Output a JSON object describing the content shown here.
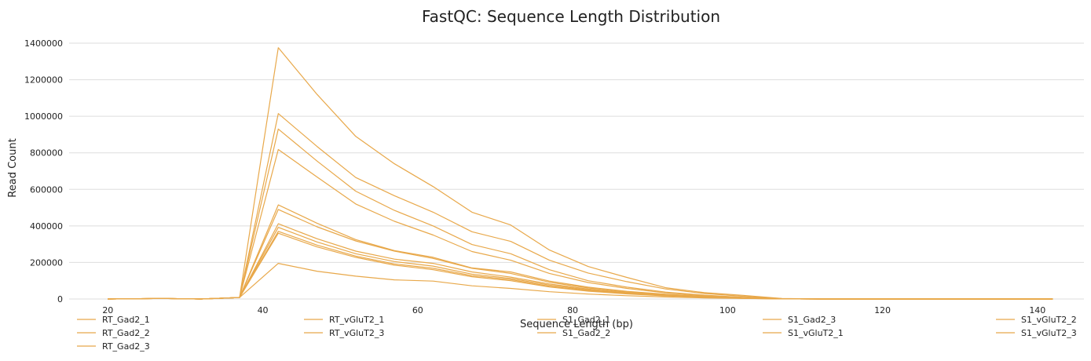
{
  "chart_data": {
    "type": "line",
    "title": "FastQC: Sequence Length Distribution",
    "xlabel": "Sequence Length (bp)",
    "ylabel": "Read Count",
    "xlim": [
      15,
      146
    ],
    "ylim": [
      0,
      1400000
    ],
    "xticks": [
      "20",
      "40",
      "60",
      "80",
      "100",
      "120",
      "140"
    ],
    "yticks": [
      "0",
      "200000",
      "400000",
      "600000",
      "800000",
      "1000000",
      "1200000",
      "1400000"
    ],
    "grid": true,
    "line_color": "#e8a84a",
    "legend_position": "bottom",
    "x": [
      20,
      27,
      32,
      37,
      42,
      47,
      52,
      57,
      62,
      67,
      72,
      77,
      82,
      87,
      92,
      97,
      102,
      107,
      112,
      117,
      122,
      127,
      132,
      137,
      142
    ],
    "series": [
      {
        "name": "RT_Gad2_1",
        "values": [
          0,
          3000,
          0,
          8000,
          1375000,
          1120000,
          890000,
          740000,
          615000,
          475000,
          405000,
          268000,
          178000,
          118000,
          62000,
          35000,
          20000,
          3000,
          0,
          0,
          0,
          0,
          0,
          0,
          0
        ]
      },
      {
        "name": "RT_Gad2_2",
        "values": [
          0,
          3000,
          0,
          8000,
          1015000,
          835000,
          665000,
          565000,
          475000,
          368000,
          315000,
          212000,
          142000,
          95000,
          55000,
          30000,
          15000,
          2000,
          0,
          0,
          0,
          0,
          0,
          0,
          0
        ]
      },
      {
        "name": "RT_Gad2_3",
        "values": [
          0,
          3000,
          0,
          8000,
          930000,
          755000,
          590000,
          485000,
          400000,
          298000,
          248000,
          160000,
          100000,
          65000,
          38000,
          21000,
          9000,
          1000,
          0,
          0,
          0,
          0,
          0,
          0,
          0
        ]
      },
      {
        "name": "RT_vGluT2_1",
        "values": [
          0,
          3000,
          0,
          8000,
          818000,
          668000,
          520000,
          425000,
          350000,
          260000,
          212000,
          140000,
          90000,
          58000,
          34000,
          19000,
          8000,
          1000,
          0,
          0,
          0,
          0,
          0,
          0,
          0
        ]
      },
      {
        "name": "RT_vGluT2_3",
        "values": [
          0,
          3000,
          0,
          8000,
          515000,
          415000,
          325000,
          265000,
          228000,
          170000,
          148000,
          98000,
          65000,
          42000,
          26000,
          15000,
          7000,
          1000,
          0,
          0,
          0,
          0,
          0,
          0,
          0
        ]
      },
      {
        "name": "S1_Gad2_1",
        "values": [
          0,
          3000,
          0,
          8000,
          490000,
          395000,
          318000,
          262000,
          222000,
          168000,
          140000,
          92000,
          60000,
          39000,
          24000,
          14000,
          6000,
          1000,
          0,
          0,
          0,
          0,
          0,
          0,
          0
        ]
      },
      {
        "name": "S1_Gad2_2",
        "values": [
          0,
          3000,
          0,
          8000,
          412000,
          330000,
          262000,
          218000,
          195000,
          148000,
          120000,
          82000,
          54000,
          35000,
          21000,
          12000,
          5000,
          500,
          0,
          0,
          0,
          0,
          0,
          0,
          0
        ]
      },
      {
        "name": "S1_Gad2_3",
        "values": [
          0,
          3000,
          0,
          8000,
          392000,
          312000,
          248000,
          205000,
          180000,
          136000,
          112000,
          76000,
          50000,
          32000,
          19000,
          11000,
          5000,
          500,
          0,
          0,
          0,
          0,
          0,
          0,
          0
        ]
      },
      {
        "name": "S1_vGluT2_1",
        "values": [
          0,
          3000,
          0,
          8000,
          370000,
          295000,
          235000,
          192000,
          168000,
          128000,
          106000,
          70000,
          46000,
          30000,
          18000,
          10000,
          4000,
          500,
          0,
          0,
          0,
          0,
          0,
          0,
          0
        ]
      },
      {
        "name": "S1_vGluT2_2",
        "values": [
          0,
          3000,
          0,
          8000,
          360000,
          285000,
          228000,
          185000,
          160000,
          122000,
          100000,
          66000,
          43000,
          28000,
          17000,
          9000,
          4000,
          500,
          0,
          0,
          0,
          0,
          0,
          0,
          0
        ]
      },
      {
        "name": "S1_vGluT2_3",
        "values": [
          0,
          3000,
          0,
          8000,
          195000,
          152000,
          125000,
          105000,
          98000,
          72000,
          58000,
          40000,
          27000,
          18000,
          11000,
          6000,
          3000,
          500,
          0,
          0,
          0,
          0,
          0,
          0,
          0
        ]
      }
    ]
  }
}
